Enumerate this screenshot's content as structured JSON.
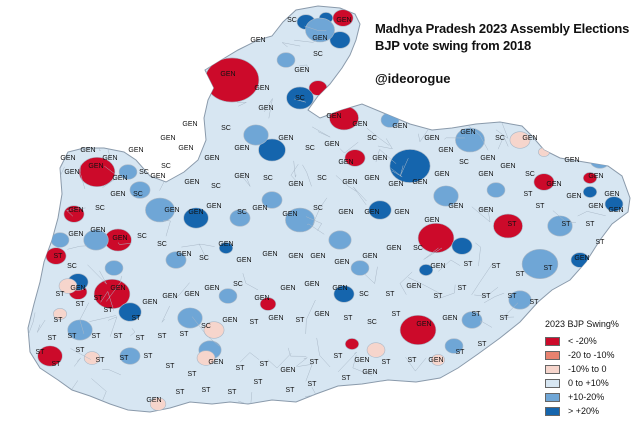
{
  "title_line1": "Madhya Pradesh 2023 Assembly Elections",
  "title_line2": "BJP vote swing from 2018",
  "credit": "@ideorogue",
  "legend": {
    "title": "2023 BJP Swing%",
    "items": [
      {
        "label": "< -20%",
        "color": "#cc0a2a"
      },
      {
        "label": "-20 to -10%",
        "color": "#e8826f"
      },
      {
        "label": "-10% to 0",
        "color": "#f6d5cc"
      },
      {
        "label": "0 to +10%",
        "color": "#d7e6f2"
      },
      {
        "label": "+10-20%",
        "color": "#6fa6d6"
      },
      {
        "label": "> +20%",
        "color": "#1565ad"
      }
    ]
  },
  "map": {
    "base_color": "#d7e6f2",
    "border_color": "#a9b8c7",
    "constituency_labels": [
      "GEN",
      "SC",
      "ST"
    ]
  }
}
